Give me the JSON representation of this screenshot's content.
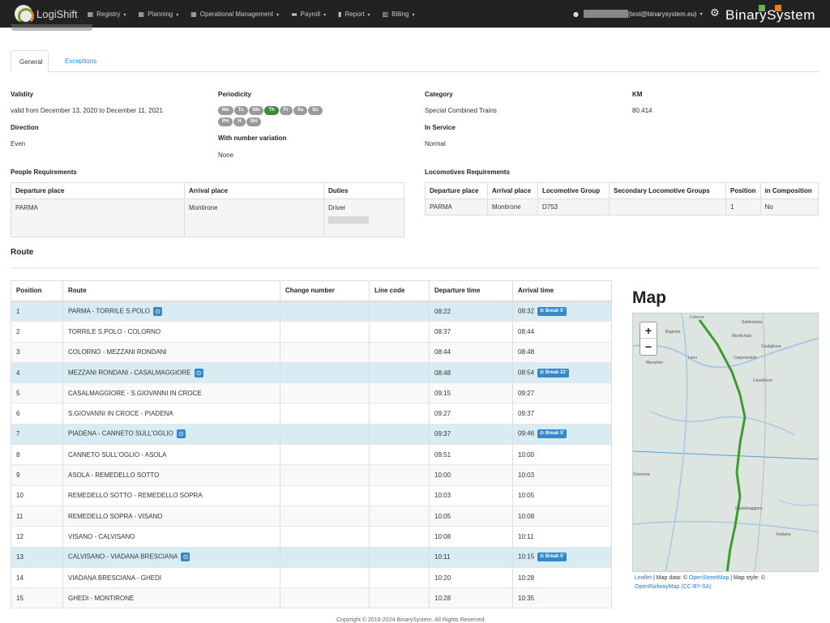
{
  "nav": {
    "app_name": "LogiShift",
    "menu": [
      {
        "icon": "calendar-icon",
        "glyph": "▦",
        "label": "Registry"
      },
      {
        "icon": "calendar-icon",
        "glyph": "▦",
        "label": "Planning"
      },
      {
        "icon": "calendar-icon",
        "glyph": "▦",
        "label": "Operational Management"
      },
      {
        "icon": "money-icon",
        "glyph": "▬",
        "label": "Payroll"
      },
      {
        "icon": "file-icon",
        "glyph": "▮",
        "label": "Report"
      },
      {
        "icon": "bank-icon",
        "glyph": "▥",
        "label": "Billing"
      }
    ],
    "user_email": "(test@binarysystem.eu)",
    "brand": "BinarySystem",
    "brand_colors": [
      "#6ab04c",
      "#e67e22"
    ]
  },
  "tabs": {
    "general": "General",
    "exceptions": "Exceptions"
  },
  "details": {
    "validity_label": "Validity",
    "validity_value": "valid from December 13, 2020 to December 11, 2021",
    "direction_label": "Direction",
    "direction_value": "Even",
    "periodicity_label": "Periodicity",
    "days": [
      {
        "label": "Mo",
        "active": false
      },
      {
        "label": "Tu",
        "active": false
      },
      {
        "label": "We",
        "active": false
      },
      {
        "label": "Th",
        "active": true
      },
      {
        "label": "Fr",
        "active": false
      },
      {
        "label": "Sa",
        "active": false
      },
      {
        "label": "Su",
        "active": false
      },
      {
        "label": "PH",
        "active": false
      },
      {
        "label": "H",
        "active": false
      },
      {
        "label": "SH",
        "active": false
      }
    ],
    "number_variation_label": "With number variation",
    "number_variation_value": "None",
    "category_label": "Category",
    "category_value": "Special Combined Trains",
    "in_service_label": "In Service",
    "in_service_value": "Normal",
    "km_label": "KM",
    "km_value": "80.414"
  },
  "people": {
    "title": "People Requirements",
    "headers": [
      "Departure place",
      "Arrival place",
      "Duties"
    ],
    "row": [
      "PARMA",
      "Montirone",
      "Driver"
    ]
  },
  "locomotives": {
    "title": "Locomotives Requirements",
    "headers": [
      "Departure place",
      "Arrival place",
      "Locomotive Group",
      "Secondary Locomotive Groups",
      "Position",
      "in Composition"
    ],
    "row": [
      "PARMA",
      "Montirone",
      "D753",
      "",
      "1",
      "No"
    ]
  },
  "route": {
    "title": "Route",
    "headers": [
      "Position",
      "Route",
      "Change number",
      "Line code",
      "Departure time",
      "Arrival time"
    ],
    "rows": [
      {
        "pos": "1",
        "route": "PARMA - TORRILE S.POLO",
        "dep": "08:22",
        "arr": "08:32",
        "brk": "Break 5'"
      },
      {
        "pos": "2",
        "route": "TORRILE S.POLO - COLORNO",
        "dep": "08:37",
        "arr": "08:44",
        "brk": ""
      },
      {
        "pos": "3",
        "route": "COLORNO - MEZZANI RONDANI",
        "dep": "08:44",
        "arr": "08:48",
        "brk": ""
      },
      {
        "pos": "4",
        "route": "MEZZANI RONDANI - CASALMAGGIORE",
        "dep": "08:48",
        "arr": "08:54",
        "brk": "Break 21'"
      },
      {
        "pos": "5",
        "route": "CASALMAGGIORE - S.GIOVANNI IN CROCE",
        "dep": "09:15",
        "arr": "09:27",
        "brk": ""
      },
      {
        "pos": "6",
        "route": "S.GIOVANNI IN CROCE - PIADENA",
        "dep": "09:27",
        "arr": "09:37",
        "brk": ""
      },
      {
        "pos": "7",
        "route": "PIADENA - CANNETO SULL'OGLIO",
        "dep": "09:37",
        "arr": "09:46",
        "brk": "Break 5'"
      },
      {
        "pos": "8",
        "route": "CANNETO SULL'OGLIO - ASOLA",
        "dep": "09:51",
        "arr": "10:00",
        "brk": ""
      },
      {
        "pos": "9",
        "route": "ASOLA - REMEDELLO SOTTO",
        "dep": "10:00",
        "arr": "10:03",
        "brk": ""
      },
      {
        "pos": "10",
        "route": "REMEDELLO SOTTO - REMEDELLO SOPRA",
        "dep": "10:03",
        "arr": "10:05",
        "brk": ""
      },
      {
        "pos": "11",
        "route": "REMEDELLO SOPRA - VISANO",
        "dep": "10:05",
        "arr": "10:08",
        "brk": ""
      },
      {
        "pos": "12",
        "route": "VISANO - CALVISANO",
        "dep": "10:08",
        "arr": "10:11",
        "brk": ""
      },
      {
        "pos": "13",
        "route": "CALVISANO - VIADANA BRESCIANA",
        "dep": "10:11",
        "arr": "10:15",
        "brk": "Break 5'"
      },
      {
        "pos": "14",
        "route": "VIADANA BRESCIANA - GHEDI",
        "dep": "10:20",
        "arr": "10:28",
        "brk": ""
      },
      {
        "pos": "15",
        "route": "GHEDI - MONTIRONE",
        "dep": "10:28",
        "arr": "10:35",
        "brk": ""
      }
    ]
  },
  "map": {
    "title": "Map",
    "zoom_in": "+",
    "zoom_out": "−",
    "attribution_leaflet": "Leaflet",
    "attribution_data": " | Map data: © ",
    "attribution_osm": "OpenStreetMap",
    "attribution_style": " | Map style: © ",
    "attribution_orm": "OpenRailwayMap",
    "attribution_license": "(CC-BY-SA)",
    "route_color": "#3f9a2f"
  },
  "footer": "Copyright © 2018-2024 BinarySystem. All Rights Reserved."
}
